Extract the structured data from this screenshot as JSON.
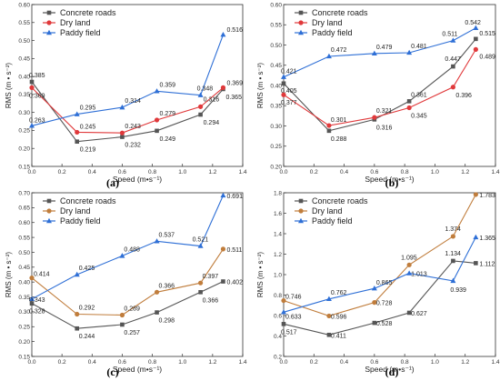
{
  "chart_data": [
    {
      "type": "line",
      "panel": "(a)",
      "xlabel": "Speed (m•s⁻¹)",
      "ylabel": "RMS (m • s⁻²)",
      "xlim": [
        0.0,
        1.4
      ],
      "ylim": [
        0.15,
        0.6
      ],
      "xticks": [
        "0.0",
        "0.2",
        "0.4",
        "0.6",
        "0.8",
        "1.0",
        "1.2",
        "1.4"
      ],
      "yticks": [
        "0.15",
        "0.20",
        "0.25",
        "0.30",
        "0.35",
        "0.40",
        "0.45",
        "0.50",
        "0.55",
        "0.60"
      ],
      "x": [
        0.0,
        0.3,
        0.6,
        0.83,
        1.12,
        1.27
      ],
      "legend": "top-left",
      "series": [
        {
          "name": "Concrete roads",
          "color": "#555555",
          "marker": "square",
          "values": [
            0.385,
            0.219,
            0.232,
            0.249,
            0.294,
            0.365
          ],
          "labels": [
            "0.385",
            "0.219",
            "0.232",
            "0.249",
            "0.294",
            "0.365"
          ]
        },
        {
          "name": "Dry land",
          "color": "#e0393b",
          "marker": "circle",
          "values": [
            0.369,
            0.245,
            0.243,
            0.279,
            0.316,
            0.369
          ],
          "labels": [
            "0.369",
            "0.245",
            "0.243",
            "0.279",
            "0.316",
            "0.369"
          ]
        },
        {
          "name": "Paddy field",
          "color": "#2e6fd6",
          "marker": "triangle",
          "values": [
            0.263,
            0.295,
            0.314,
            0.359,
            0.348,
            0.516
          ],
          "labels": [
            "0.263",
            "0.295",
            "0.314",
            "0.359",
            "0.348",
            "0.516"
          ]
        }
      ]
    },
    {
      "type": "line",
      "panel": "(b)",
      "xlabel": "Speed (m•s⁻¹)",
      "ylabel": "RMS (m • s⁻²)",
      "xlim": [
        0.0,
        1.4
      ],
      "ylim": [
        0.2,
        0.6
      ],
      "xticks": [
        "0.0",
        "0.2",
        "0.4",
        "0.6",
        "0.8",
        "1.0",
        "1.2",
        "1.4"
      ],
      "yticks": [
        "0.20",
        "0.25",
        "0.30",
        "0.35",
        "0.40",
        "0.45",
        "0.50",
        "0.55",
        "0.60"
      ],
      "x": [
        0.0,
        0.3,
        0.6,
        0.83,
        1.12,
        1.27
      ],
      "legend": "top-left",
      "series": [
        {
          "name": "Concrete roads",
          "color": "#555555",
          "marker": "square",
          "values": [
            0.405,
            0.288,
            0.316,
            0.361,
            0.447,
            0.515
          ],
          "labels": [
            "0.405",
            "0.288",
            "0.316",
            "0.361",
            "0.447",
            "0.515"
          ]
        },
        {
          "name": "Dry land",
          "color": "#e0393b",
          "marker": "circle",
          "values": [
            0.377,
            0.301,
            0.321,
            0.345,
            0.396,
            0.489
          ],
          "labels": [
            "0.377",
            "0.301",
            "0.321",
            "0.345",
            "0.396",
            "0.489"
          ]
        },
        {
          "name": "Paddy field",
          "color": "#2e6fd6",
          "marker": "triangle",
          "values": [
            0.421,
            0.472,
            0.479,
            0.481,
            0.511,
            0.542
          ],
          "labels": [
            "0.421",
            "0.472",
            "0.479",
            "0.481",
            "0.511",
            "0.542"
          ]
        }
      ]
    },
    {
      "type": "line",
      "panel": "(c)",
      "xlabel": "Speed (m•s⁻¹)",
      "ylabel": "RMS (m • s⁻²)",
      "xlim": [
        0.0,
        1.4
      ],
      "ylim": [
        0.15,
        0.7
      ],
      "xticks": [
        "0.0",
        "0.2",
        "0.4",
        "0.6",
        "0.8",
        "1.0",
        "1.2",
        "1.4"
      ],
      "yticks": [
        "0.15",
        "0.20",
        "0.25",
        "0.30",
        "0.35",
        "0.40",
        "0.45",
        "0.50",
        "0.55",
        "0.60",
        "0.65",
        "0.70"
      ],
      "x": [
        0.0,
        0.3,
        0.6,
        0.83,
        1.12,
        1.27
      ],
      "legend": "top-left",
      "series": [
        {
          "name": "Concrete roads",
          "color": "#555555",
          "marker": "square",
          "values": [
            0.328,
            0.244,
            0.257,
            0.298,
            0.366,
            0.402
          ],
          "labels": [
            "0.328",
            "0.244",
            "0.257",
            "0.298",
            "0.366",
            "0.402"
          ]
        },
        {
          "name": "Dry land",
          "color": "#c07d3c",
          "marker": "circle",
          "values": [
            0.414,
            0.292,
            0.289,
            0.366,
            0.397,
            0.511
          ],
          "labels": [
            "0.414",
            "0.292",
            "0.289",
            "0.366",
            "0.397",
            "0.511"
          ]
        },
        {
          "name": "Paddy field",
          "color": "#2e6fd6",
          "marker": "triangle",
          "values": [
            0.343,
            0.425,
            0.488,
            0.537,
            0.521,
            0.691
          ],
          "labels": [
            "0.343",
            "0.425",
            "0.488",
            "0.537",
            "0.521",
            "0.691"
          ]
        }
      ]
    },
    {
      "type": "line",
      "panel": "(d)",
      "xlabel": "Speed (m•s⁻¹)",
      "ylabel": "RMS (m • s⁻²)",
      "xlim": [
        0.0,
        1.4
      ],
      "ylim": [
        0.2,
        1.8
      ],
      "xticks": [
        "0.0",
        "0.2",
        "0.4",
        "0.6",
        "0.8",
        "1.0",
        "1.2",
        "1.4"
      ],
      "yticks": [
        "0.2",
        "0.4",
        "0.6",
        "0.8",
        "1.0",
        "1.2",
        "1.4",
        "1.6",
        "1.8"
      ],
      "x": [
        0.0,
        0.3,
        0.6,
        0.83,
        1.12,
        1.27
      ],
      "legend": "top-left",
      "series": [
        {
          "name": "Concrete roads",
          "color": "#555555",
          "marker": "square",
          "values": [
            0.517,
            0.411,
            0.528,
            0.627,
            1.134,
            1.112
          ],
          "labels": [
            "0.517",
            "0.411",
            "0.528",
            "0.627",
            "1.134",
            "1.112"
          ]
        },
        {
          "name": "Dry land",
          "color": "#c07d3c",
          "marker": "circle",
          "values": [
            0.746,
            0.596,
            0.728,
            1.095,
            1.374,
            1.783
          ],
          "labels": [
            "0.746",
            "0.596",
            "0.728",
            "1.095",
            "1.374",
            "1.783"
          ]
        },
        {
          "name": "Paddy field",
          "color": "#2e6fd6",
          "marker": "triangle",
          "values": [
            0.633,
            0.762,
            0.865,
            1.013,
            0.939,
            1.365
          ],
          "labels": [
            "0.633",
            "0.762",
            "0.865",
            "1.013",
            "0.939",
            "1.365"
          ]
        }
      ]
    }
  ]
}
